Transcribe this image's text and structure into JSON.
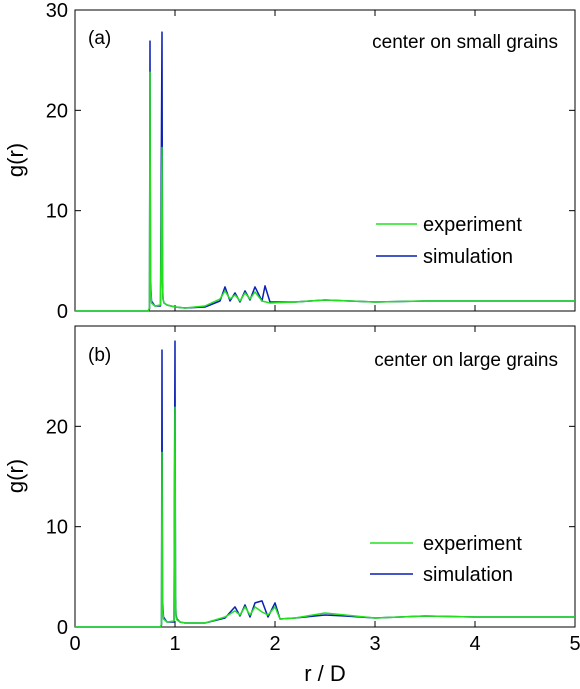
{
  "figure": {
    "panel_labels": [
      "(a)",
      "(b)"
    ],
    "annotations": [
      "center on small grains",
      "center on large grains"
    ],
    "ylabel": "g(r)",
    "xlabel": "r / D",
    "legend": [
      "experiment",
      "simulation"
    ],
    "colors": {
      "experiment": "#22e01e",
      "simulation": "#0a1fb4"
    }
  },
  "chart_data": [
    {
      "type": "line",
      "panel_label": "(a)",
      "annotation": "center on small grains",
      "xlabel": "",
      "ylabel": "g(r)",
      "xlim": [
        0,
        5
      ],
      "ylim": [
        0,
        30
      ],
      "xticks": [
        0,
        1,
        2,
        3,
        4,
        5
      ],
      "xtick_labels": [],
      "yticks": [
        0,
        10,
        20,
        30
      ],
      "ytick_labels": [
        "0",
        "10",
        "20",
        "30"
      ],
      "legend_position": "right",
      "series": [
        {
          "name": "experiment",
          "color": "#22e01e",
          "x": [
            0,
            0.73,
            0.745,
            0.75,
            0.755,
            0.765,
            0.8,
            0.855,
            0.87,
            0.875,
            0.88,
            0.89,
            0.92,
            1.0,
            1.1,
            1.3,
            1.45,
            1.5,
            1.55,
            1.6,
            1.65,
            1.7,
            1.75,
            1.8,
            1.87,
            1.95,
            2.2,
            2.5,
            3.0,
            3.5,
            4.0,
            4.5,
            5.0
          ],
          "y": [
            0,
            0,
            0.3,
            23.8,
            2.5,
            0.8,
            0.5,
            0.6,
            16.3,
            2.5,
            1.2,
            0.8,
            0.6,
            0.4,
            0.3,
            0.5,
            1.2,
            2.0,
            1.2,
            1.6,
            1.0,
            1.8,
            1.2,
            1.9,
            1.0,
            0.8,
            0.9,
            1.1,
            0.9,
            1.0,
            1.0,
            1.0,
            1.0
          ]
        },
        {
          "name": "simulation",
          "color": "#0a1fb4",
          "x": [
            0,
            0.73,
            0.745,
            0.75,
            0.755,
            0.765,
            0.8,
            0.855,
            0.87,
            0.875,
            0.88,
            0.89,
            0.92,
            1.0,
            1.1,
            1.3,
            1.45,
            1.5,
            1.55,
            1.6,
            1.65,
            1.7,
            1.75,
            1.8,
            1.87,
            1.9,
            1.95,
            2.2,
            2.5,
            3.0,
            3.5,
            4.0,
            4.5,
            5.0
          ],
          "y": [
            0,
            0,
            0.2,
            26.9,
            3.0,
            1.0,
            0.5,
            0.5,
            27.8,
            3.0,
            1.2,
            0.8,
            0.6,
            0.4,
            0.3,
            0.4,
            1.0,
            2.4,
            1.0,
            1.8,
            0.9,
            2.0,
            1.1,
            2.4,
            1.0,
            2.5,
            0.9,
            0.9,
            1.1,
            0.9,
            1.0,
            1.0,
            1.0,
            1.0
          ]
        }
      ]
    },
    {
      "type": "line",
      "panel_label": "(b)",
      "annotation": "center on large grains",
      "xlabel": "r / D",
      "ylabel": "g(r)",
      "xlim": [
        0,
        5
      ],
      "ylim": [
        0,
        30
      ],
      "xticks": [
        0,
        1,
        2,
        3,
        4,
        5
      ],
      "xtick_labels": [
        "0",
        "1",
        "2",
        "3",
        "4",
        "5"
      ],
      "yticks": [
        0,
        10,
        20
      ],
      "ytick_labels": [
        "0",
        "10",
        "20"
      ],
      "legend_position": "right",
      "series": [
        {
          "name": "experiment",
          "color": "#22e01e",
          "x": [
            0,
            0.855,
            0.865,
            0.87,
            0.875,
            0.885,
            0.92,
            0.99,
            1.0,
            1.005,
            1.01,
            1.02,
            1.05,
            1.1,
            1.3,
            1.5,
            1.6,
            1.65,
            1.7,
            1.75,
            1.8,
            1.87,
            1.93,
            2.0,
            2.05,
            2.2,
            2.5,
            2.7,
            3.0,
            3.5,
            4.0,
            4.5,
            5.0
          ],
          "y": [
            0,
            0,
            0.3,
            17.4,
            2.0,
            0.8,
            0.5,
            0.6,
            21.9,
            2.5,
            1.0,
            0.7,
            0.5,
            0.4,
            0.4,
            1.0,
            1.6,
            1.2,
            2.0,
            1.2,
            2.0,
            1.5,
            1.2,
            2.0,
            0.8,
            0.9,
            1.4,
            1.2,
            0.9,
            1.1,
            1.0,
            1.0,
            1.0
          ]
        },
        {
          "name": "simulation",
          "color": "#0a1fb4",
          "x": [
            0,
            0.855,
            0.865,
            0.87,
            0.875,
            0.885,
            0.92,
            0.99,
            1.0,
            1.005,
            1.01,
            1.02,
            1.05,
            1.1,
            1.3,
            1.5,
            1.6,
            1.65,
            1.7,
            1.75,
            1.8,
            1.87,
            1.93,
            2.0,
            2.05,
            2.2,
            2.5,
            2.7,
            3.0,
            3.5,
            4.0,
            4.5,
            5.0
          ],
          "y": [
            0,
            0,
            0.2,
            27.6,
            2.5,
            1.0,
            0.5,
            0.5,
            28.5,
            3.0,
            1.2,
            0.8,
            0.5,
            0.4,
            0.4,
            0.9,
            2.0,
            1.1,
            2.2,
            1.0,
            2.4,
            2.6,
            1.0,
            2.4,
            0.8,
            0.9,
            1.2,
            1.1,
            0.9,
            1.1,
            1.0,
            1.0,
            1.0
          ]
        }
      ]
    }
  ]
}
